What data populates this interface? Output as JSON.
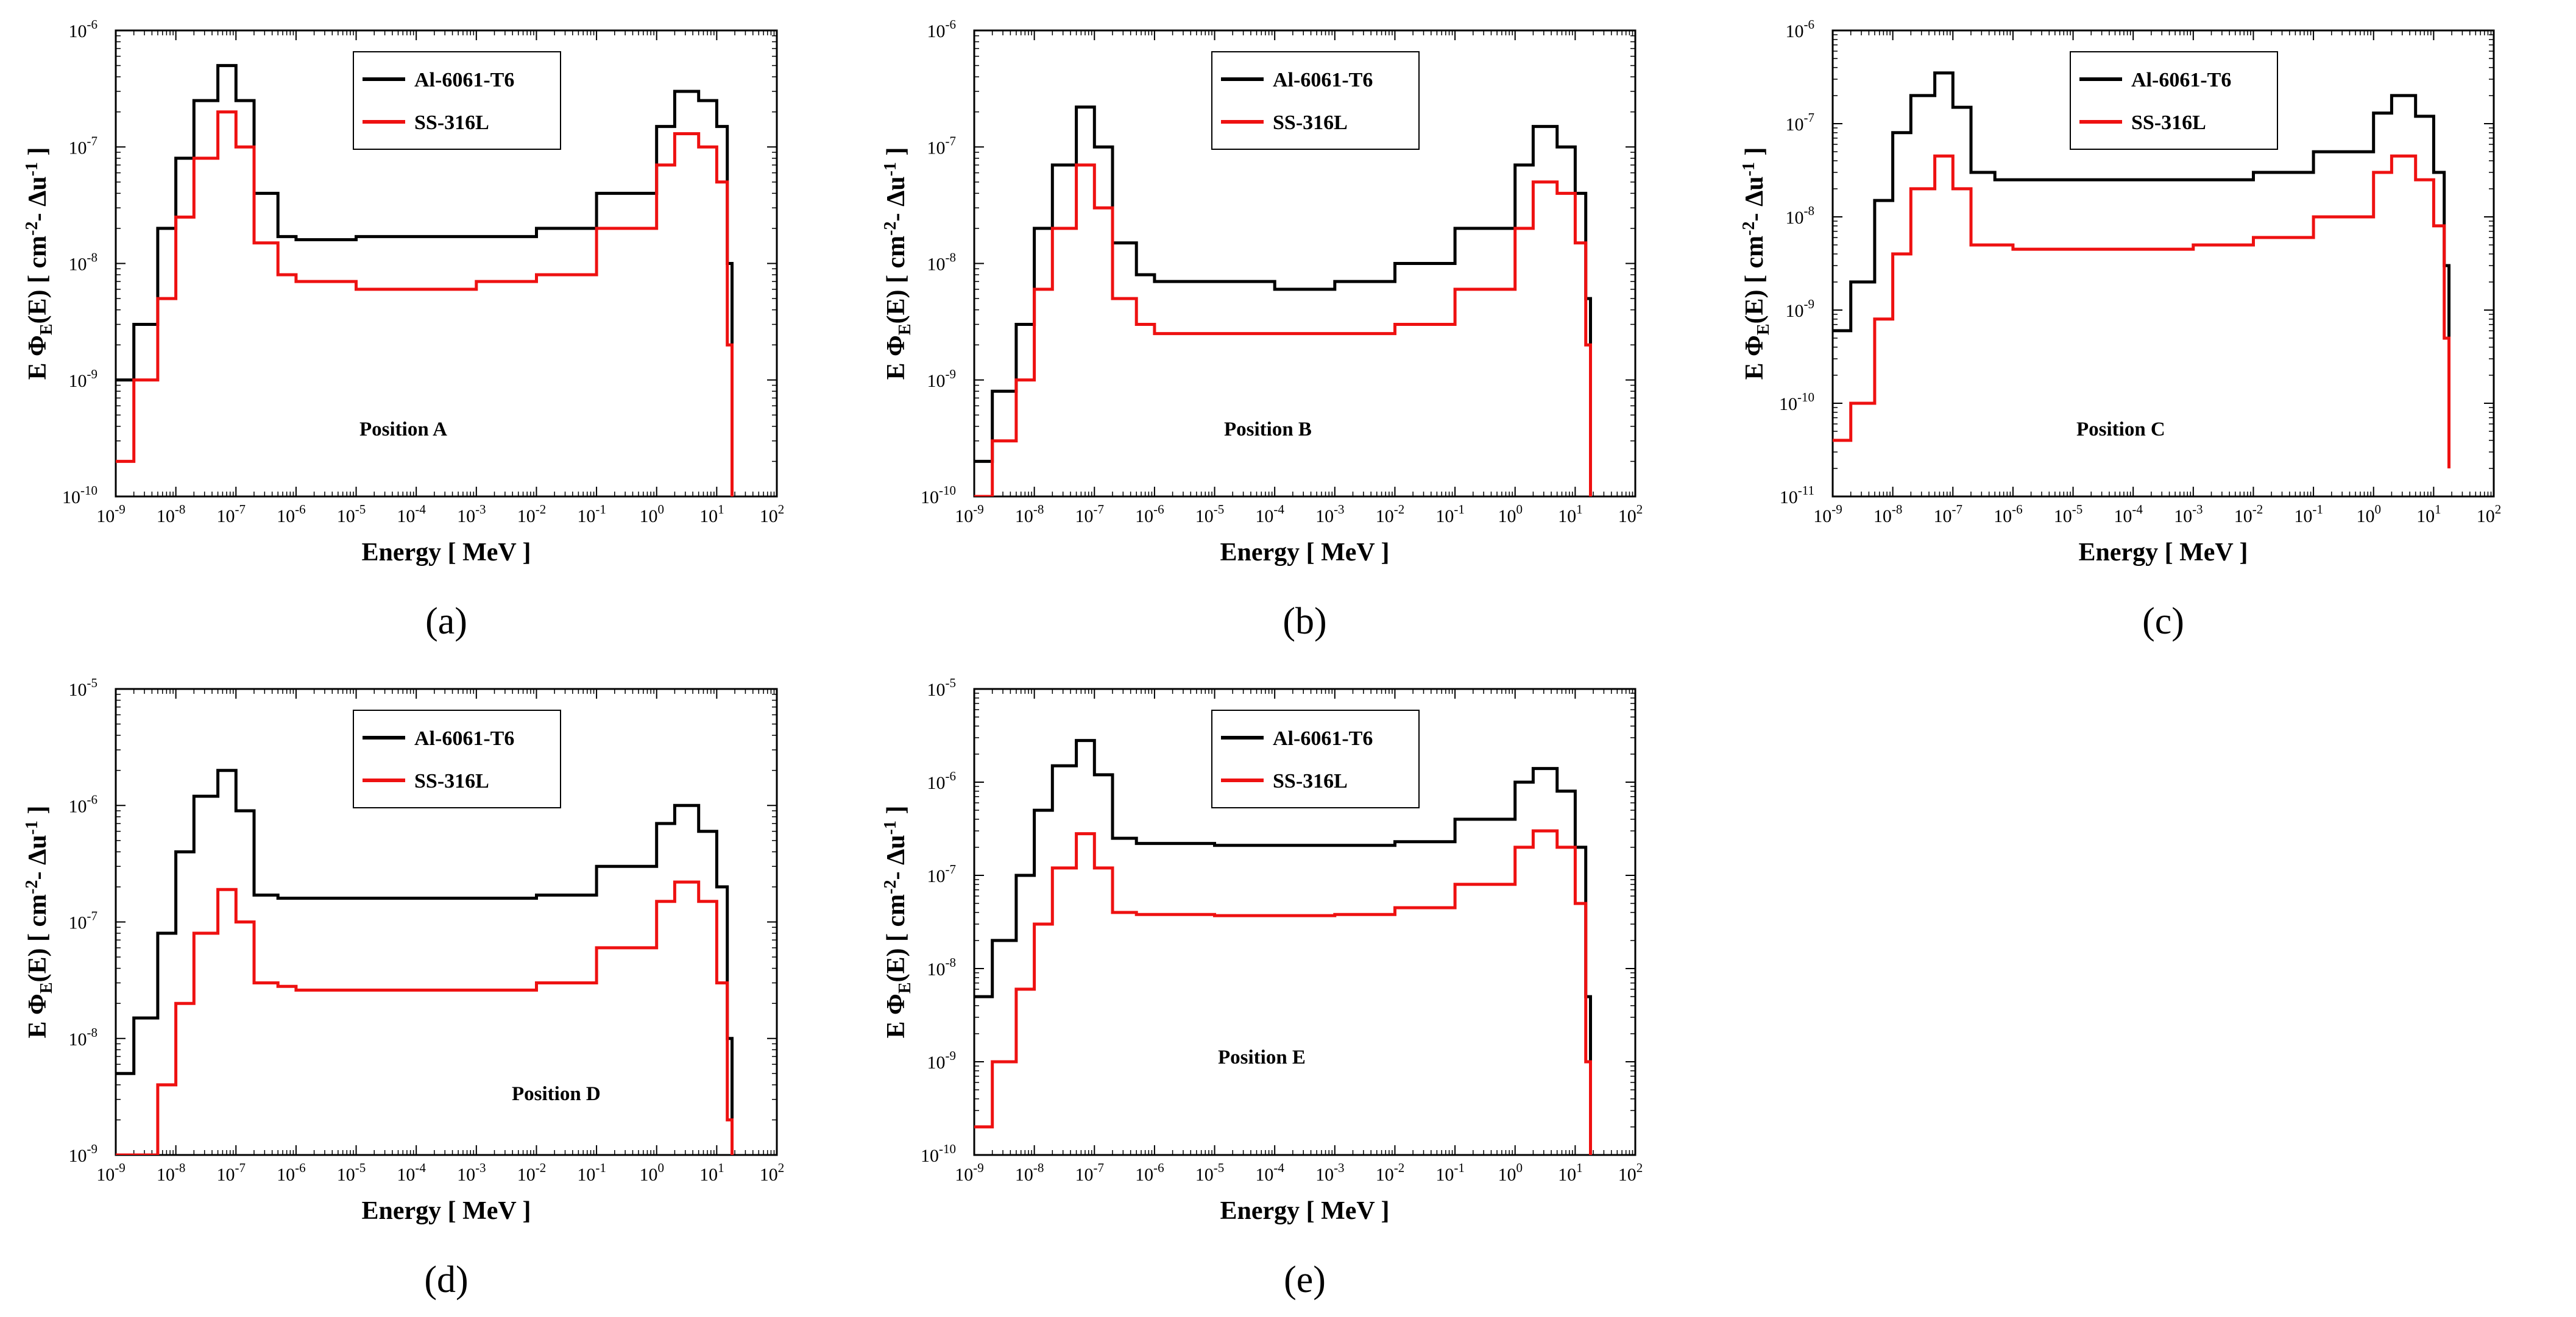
{
  "colors": {
    "al": "#000000",
    "ss": "#ee1111"
  },
  "xlabel": "Energy [ MeV ]",
  "ylabel_parts": {
    "prefix": "E  Φ",
    "sub": "E",
    "mid": "(E) [ cm",
    "sup1": "-2",
    "mid2": "- Δu",
    "sup2": "-1",
    "suffix": "]"
  },
  "x_tick_exponents": [
    "-9",
    "-8",
    "-7",
    "-6",
    "-5",
    "-4",
    "-3",
    "-2",
    "-1",
    "0",
    "1",
    "2"
  ],
  "chart_data": [
    {
      "type": "line",
      "id": "a",
      "caption": "(a)",
      "annotation": "Position A",
      "xscale": "log",
      "yscale": "log",
      "xlim": [
        1e-09,
        100
      ],
      "ylim": [
        1e-10,
        1e-06
      ],
      "y_tick_exponents": [
        "-10",
        "-9",
        "-8",
        "-7",
        "-6"
      ],
      "legend": [
        "Al-6061-T6",
        "SS-316L"
      ],
      "series": [
        {
          "name": "Al-6061-T6",
          "x": [
            1e-09,
            2e-09,
            5e-09,
            1e-08,
            2e-08,
            5e-08,
            1e-07,
            2e-07,
            5e-07,
            1e-06,
            1e-05,
            0.0001,
            0.001,
            0.01,
            0.1,
            1,
            2,
            5,
            10,
            15,
            18
          ],
          "y": [
            1e-09,
            3e-09,
            2e-08,
            8e-08,
            2.5e-07,
            5e-07,
            2.5e-07,
            4e-08,
            1.7e-08,
            1.6e-08,
            1.7e-08,
            1.7e-08,
            1.7e-08,
            2e-08,
            4e-08,
            1.5e-07,
            3e-07,
            2.5e-07,
            1.5e-07,
            1e-08,
            2e-10
          ]
        },
        {
          "name": "SS-316L",
          "x": [
            1e-09,
            2e-09,
            5e-09,
            1e-08,
            2e-08,
            5e-08,
            1e-07,
            2e-07,
            5e-07,
            1e-06,
            1e-05,
            0.0001,
            0.001,
            0.01,
            0.1,
            1,
            2,
            5,
            10,
            15,
            18
          ],
          "y": [
            2e-10,
            1e-09,
            5e-09,
            2.5e-08,
            8e-08,
            2e-07,
            1e-07,
            1.5e-08,
            8e-09,
            7e-09,
            6e-09,
            6e-09,
            7e-09,
            8e-09,
            2e-08,
            7e-08,
            1.3e-07,
            1e-07,
            5e-08,
            2e-09,
            1e-10
          ]
        }
      ]
    },
    {
      "type": "line",
      "id": "b",
      "caption": "(b)",
      "annotation": "Position B",
      "xscale": "log",
      "yscale": "log",
      "xlim": [
        1e-09,
        100
      ],
      "ylim": [
        1e-10,
        1e-06
      ],
      "y_tick_exponents": [
        "-10",
        "-9",
        "-8",
        "-7",
        "-6"
      ],
      "legend": [
        "Al-6061-T6",
        "SS-316L"
      ],
      "series": [
        {
          "name": "Al-6061-T6",
          "x": [
            1e-09,
            2e-09,
            5e-09,
            1e-08,
            2e-08,
            5e-08,
            1e-07,
            2e-07,
            5e-07,
            1e-06,
            1e-05,
            0.0001,
            0.001,
            0.01,
            0.1,
            1,
            2,
            5,
            10,
            15,
            18
          ],
          "y": [
            2e-10,
            8e-10,
            3e-09,
            2e-08,
            7e-08,
            2.2e-07,
            1e-07,
            1.5e-08,
            8e-09,
            7e-09,
            7e-09,
            6e-09,
            7e-09,
            1e-08,
            2e-08,
            7e-08,
            1.5e-07,
            1e-07,
            4e-08,
            5e-09,
            2e-10
          ]
        },
        {
          "name": "SS-316L",
          "x": [
            1e-09,
            2e-09,
            5e-09,
            1e-08,
            2e-08,
            5e-08,
            1e-07,
            2e-07,
            5e-07,
            1e-06,
            1e-05,
            0.0001,
            0.001,
            0.01,
            0.1,
            1,
            2,
            5,
            10,
            15,
            18
          ],
          "y": [
            1e-10,
            3e-10,
            1e-09,
            6e-09,
            2e-08,
            7e-08,
            3e-08,
            5e-09,
            3e-09,
            2.5e-09,
            2.5e-09,
            2.5e-09,
            2.5e-09,
            3e-09,
            6e-09,
            2e-08,
            5e-08,
            4e-08,
            1.5e-08,
            2e-09,
            1e-10
          ]
        }
      ]
    },
    {
      "type": "line",
      "id": "c",
      "caption": "(c)",
      "annotation": "Position C",
      "xscale": "log",
      "yscale": "log",
      "xlim": [
        1e-09,
        100
      ],
      "ylim": [
        1e-11,
        1e-06
      ],
      "y_tick_exponents": [
        "-11",
        "-10",
        "-9",
        "-8",
        "-7",
        "-6"
      ],
      "legend": [
        "Al-6061-T6",
        "SS-316L"
      ],
      "series": [
        {
          "name": "Al-6061-T6",
          "x": [
            1e-09,
            2e-09,
            5e-09,
            1e-08,
            2e-08,
            5e-08,
            1e-07,
            2e-07,
            5e-07,
            1e-06,
            1e-05,
            0.0001,
            0.001,
            0.01,
            0.1,
            1,
            2,
            5,
            10,
            15,
            18
          ],
          "y": [
            6e-10,
            2e-09,
            1.5e-08,
            8e-08,
            2e-07,
            3.5e-07,
            1.5e-07,
            3e-08,
            2.5e-08,
            2.5e-08,
            2.5e-08,
            2.5e-08,
            2.5e-08,
            3e-08,
            5e-08,
            1.3e-07,
            2e-07,
            1.2e-07,
            3e-08,
            3e-09,
            3e-10
          ]
        },
        {
          "name": "SS-316L",
          "x": [
            1e-09,
            2e-09,
            5e-09,
            1e-08,
            2e-08,
            5e-08,
            1e-07,
            2e-07,
            5e-07,
            1e-06,
            1e-05,
            0.0001,
            0.001,
            0.01,
            0.1,
            1,
            2,
            5,
            10,
            15,
            18
          ],
          "y": [
            4e-11,
            1e-10,
            8e-10,
            4e-09,
            2e-08,
            4.5e-08,
            2e-08,
            5e-09,
            5e-09,
            4.5e-09,
            4.5e-09,
            4.5e-09,
            5e-09,
            6e-09,
            1e-08,
            3e-08,
            4.5e-08,
            2.5e-08,
            8e-09,
            5e-10,
            2e-11
          ]
        }
      ]
    },
    {
      "type": "line",
      "id": "d",
      "caption": "(d)",
      "annotation": "Position D",
      "xscale": "log",
      "yscale": "log",
      "xlim": [
        1e-09,
        100
      ],
      "ylim": [
        1e-09,
        1e-05
      ],
      "y_tick_exponents": [
        "-9",
        "-8",
        "-7",
        "-6",
        "-5"
      ],
      "legend": [
        "Al-6061-T6",
        "SS-316L"
      ],
      "series": [
        {
          "name": "Al-6061-T6",
          "x": [
            1e-09,
            2e-09,
            5e-09,
            1e-08,
            2e-08,
            5e-08,
            1e-07,
            2e-07,
            5e-07,
            1e-06,
            1e-05,
            0.0001,
            0.001,
            0.01,
            0.1,
            1,
            2,
            5,
            10,
            15,
            18
          ],
          "y": [
            5e-09,
            1.5e-08,
            8e-08,
            4e-07,
            1.2e-06,
            2e-06,
            9e-07,
            1.7e-07,
            1.6e-07,
            1.6e-07,
            1.6e-07,
            1.6e-07,
            1.6e-07,
            1.7e-07,
            3e-07,
            7e-07,
            1e-06,
            6e-07,
            2e-07,
            1e-08,
            1e-09
          ]
        },
        {
          "name": "SS-316L",
          "x": [
            1e-09,
            2e-09,
            5e-09,
            1e-08,
            2e-08,
            5e-08,
            1e-07,
            2e-07,
            5e-07,
            1e-06,
            1e-05,
            0.0001,
            0.001,
            0.01,
            0.1,
            1,
            2,
            5,
            10,
            15,
            18
          ],
          "y": [
            1e-09,
            1e-09,
            4e-09,
            2e-08,
            8e-08,
            1.9e-07,
            1e-07,
            3e-08,
            2.8e-08,
            2.6e-08,
            2.6e-08,
            2.6e-08,
            2.6e-08,
            3e-08,
            6e-08,
            1.5e-07,
            2.2e-07,
            1.5e-07,
            3e-08,
            2e-09,
            1e-09
          ]
        }
      ]
    },
    {
      "type": "line",
      "id": "e",
      "caption": "(e)",
      "annotation": "Position E",
      "xscale": "log",
      "yscale": "log",
      "xlim": [
        1e-09,
        100
      ],
      "ylim": [
        1e-10,
        1e-05
      ],
      "y_tick_exponents": [
        "-10",
        "-9",
        "-8",
        "-7",
        "-6",
        "-5"
      ],
      "legend": [
        "Al-6061-T6",
        "SS-316L"
      ],
      "series": [
        {
          "name": "Al-6061-T6",
          "x": [
            1e-09,
            2e-09,
            5e-09,
            1e-08,
            2e-08,
            5e-08,
            1e-07,
            2e-07,
            5e-07,
            1e-06,
            1e-05,
            0.0001,
            0.001,
            0.01,
            0.1,
            1,
            2,
            5,
            10,
            15,
            18
          ],
          "y": [
            5e-09,
            2e-08,
            1e-07,
            5e-07,
            1.5e-06,
            2.8e-06,
            1.2e-06,
            2.5e-07,
            2.2e-07,
            2.2e-07,
            2.1e-07,
            2.1e-07,
            2.1e-07,
            2.3e-07,
            4e-07,
            1e-06,
            1.4e-06,
            8e-07,
            2e-07,
            5e-09,
            1e-10
          ]
        },
        {
          "name": "SS-316L",
          "x": [
            1e-09,
            2e-09,
            5e-09,
            1e-08,
            2e-08,
            5e-08,
            1e-07,
            2e-07,
            5e-07,
            1e-06,
            1e-05,
            0.0001,
            0.001,
            0.01,
            0.1,
            1,
            2,
            5,
            10,
            15,
            18
          ],
          "y": [
            2e-10,
            1e-09,
            6e-09,
            3e-08,
            1.2e-07,
            2.8e-07,
            1.2e-07,
            4e-08,
            3.8e-08,
            3.8e-08,
            3.7e-08,
            3.7e-08,
            3.8e-08,
            4.5e-08,
            8e-08,
            2e-07,
            3e-07,
            2e-07,
            5e-08,
            1e-09,
            1e-10
          ]
        }
      ]
    }
  ]
}
